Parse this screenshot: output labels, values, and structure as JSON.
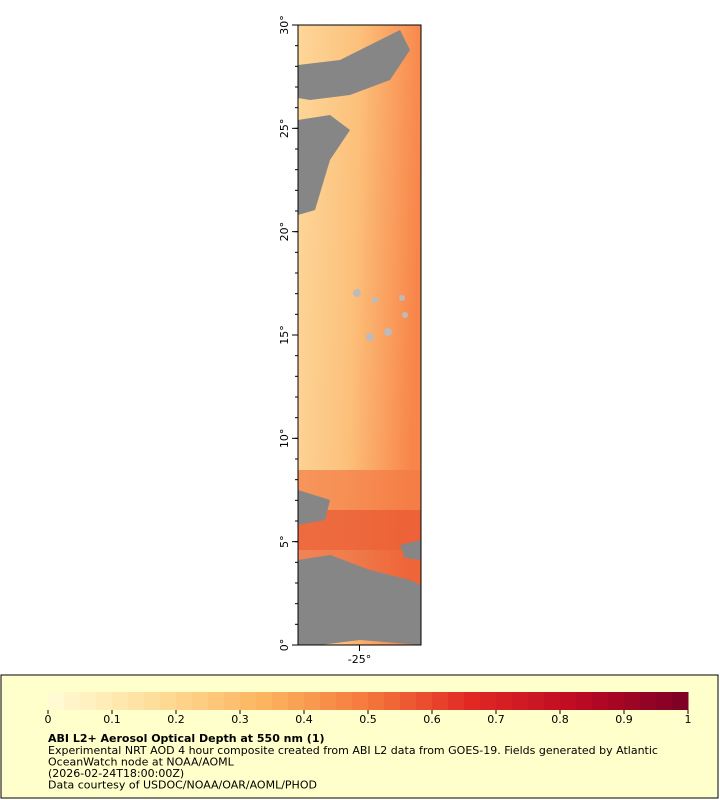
{
  "map": {
    "ylim": [
      0,
      30
    ],
    "yticks": [
      {
        "value": 0,
        "label": "0°"
      },
      {
        "value": 5,
        "label": "5°"
      },
      {
        "value": 10,
        "label": "10°"
      },
      {
        "value": 15,
        "label": "15°"
      },
      {
        "value": 20,
        "label": "20°"
      },
      {
        "value": 25,
        "label": "25°"
      },
      {
        "value": 30,
        "label": "30°"
      }
    ],
    "xlim": [
      -28,
      -22
    ],
    "xticks": [
      {
        "value": -25,
        "label": "-25°"
      }
    ]
  },
  "legend": {
    "colorbar": {
      "lim": [
        0,
        1
      ],
      "ticks": [
        0,
        0.1,
        0.2,
        0.3,
        0.4,
        0.5,
        0.6,
        0.7,
        0.8,
        0.9,
        1
      ]
    },
    "title": "ABI L2+ Aerosol Optical Depth at 550 nm (1)",
    "lines": [
      "Experimental NRT AOD 4 hour composite created from ABI L2 data from GOES-19. Fields generated by Atlantic",
      "OceanWatch node at NOAA/AOML",
      "(2026-02-24T18:00:00Z)",
      "Data courtesy of USDOC/NOAA/OAR/AOML/PHOD"
    ]
  }
}
